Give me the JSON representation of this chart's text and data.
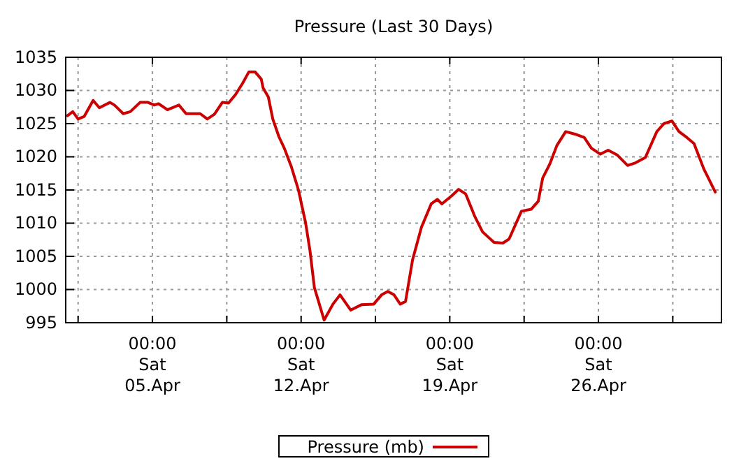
{
  "chart_data": {
    "type": "line",
    "title": "Pressure (Last 30 Days)",
    "x": [
      "--04-01T00:00",
      "--04-01T06:00",
      "--04-01T12:00",
      "--04-01T19:00",
      "--04-02T05:00",
      "--04-02T12:00",
      "--04-03T00:00",
      "--04-03T05:00",
      "--04-03T15:00",
      "--04-03T23:00",
      "--04-04T10:00",
      "--04-04T19:00",
      "--04-05T02:00",
      "--04-05T07:00",
      "--04-05T17:00",
      "--04-06T06:00",
      "--04-06T14:00",
      "--04-07T06:00",
      "--04-07T14:00",
      "--04-07T22:00",
      "--04-08T07:00",
      "--04-08T14:00",
      "--04-08T22:00",
      "--04-09T06:00",
      "--04-09T13:00",
      "--04-09T20:00",
      "--04-10T03:00",
      "--04-10T05:00",
      "--04-10T11:00",
      "--04-10T16:00",
      "--04-10T23:00",
      "--04-11T05:00",
      "--04-11T13:00",
      "--04-11T21:00",
      "--04-12T05:00",
      "--04-12T10:00",
      "--04-12T15:00",
      "--04-13T02:00",
      "--04-13T12:00",
      "--04-13T20:00",
      "--04-14T08:00",
      "--04-14T20:00",
      "--04-15T10:00",
      "--04-15T19:00",
      "--04-16T02:00",
      "--04-16T09:00",
      "--04-16T16:00",
      "--04-16T22:00",
      "--04-17T06:00",
      "--04-17T16:00",
      "--04-18T03:00",
      "--04-18T10:00",
      "--04-18T15:00",
      "--04-19T02:00",
      "--04-19T10:00",
      "--04-19T18:00",
      "--04-20T04:00",
      "--04-20T13:00",
      "--04-21T02:00",
      "--04-21T12:00",
      "--04-21T19:00",
      "--04-22T09:00",
      "--04-22T20:00",
      "--04-23T04:00",
      "--04-23T09:00",
      "--04-23T17:00",
      "--04-24T01:00",
      "--04-24T11:00",
      "--04-24T22:00",
      "--04-25T08:00",
      "--04-25T16:00",
      "--04-26T02:00",
      "--04-26T11:00",
      "--04-26T21:00",
      "--04-27T09:00",
      "--04-27T18:00",
      "--04-28T05:00",
      "--04-28T18:00",
      "--04-29T02:00",
      "--04-29T11:00",
      "--04-29T19:00",
      "--04-30T04:00",
      "--04-30T12:00",
      "--04-30T23:00",
      "--05-01T12:00"
    ],
    "series": [
      {
        "name": "Pressure (mb)",
        "color": "#cc0000",
        "values": [
          1026.2,
          1026.8,
          1025.7,
          1026.1,
          1028.5,
          1027.4,
          1028.2,
          1027.8,
          1026.5,
          1026.8,
          1028.2,
          1028.2,
          1027.8,
          1028,
          1027.1,
          1027.8,
          1026.5,
          1026.5,
          1025.7,
          1026.4,
          1028.2,
          1028.1,
          1029.4,
          1031.1,
          1032.8,
          1032.8,
          1031.7,
          1030.4,
          1029,
          1025.7,
          1023,
          1021.3,
          1018.5,
          1015,
          1010.1,
          1005.9,
          1000.3,
          995.4,
          997.8,
          999.2,
          996.9,
          997.7,
          997.8,
          999.2,
          999.7,
          999.2,
          997.8,
          998.2,
          1004.5,
          1009.4,
          1012.9,
          1013.6,
          1012.9,
          1014.1,
          1015.1,
          1014.4,
          1011.1,
          1008.7,
          1007.1,
          1007,
          1007.6,
          1011.8,
          1012.1,
          1013.3,
          1016.8,
          1018.9,
          1021.7,
          1023.8,
          1023.4,
          1022.9,
          1021.3,
          1020.4,
          1021,
          1020.3,
          1018.7,
          1019.1,
          1019.9,
          1023.8,
          1025,
          1025.4,
          1023.8,
          1022.9,
          1022,
          1018.2,
          1014.7
        ]
      }
    ],
    "xlim": [
      "--03-31T22:00",
      "--05-01T19:00"
    ],
    "xticks": [
      {
        "value": "--04-01T12:00",
        "label": null
      },
      {
        "value": "--04-05T00:00",
        "label": "00:00\nSat\n05.Apr"
      },
      {
        "value": "--04-08T12:00",
        "label": null
      },
      {
        "value": "--04-12T00:00",
        "label": "00:00\nSat\n12.Apr"
      },
      {
        "value": "--04-15T12:00",
        "label": null
      },
      {
        "value": "--04-19T00:00",
        "label": "00:00\nSat\n19.Apr"
      },
      {
        "value": "--04-22T12:00",
        "label": null
      },
      {
        "value": "--04-26T00:00",
        "label": "00:00\nSat\n26.Apr"
      },
      {
        "value": "--04-29T12:00",
        "label": null
      }
    ],
    "ylim": [
      995,
      1035
    ],
    "yticks": [
      995,
      1000,
      1005,
      1010,
      1015,
      1020,
      1025,
      1030,
      1035
    ],
    "grid": true,
    "legend": "bottom",
    "marker": "none",
    "line_style": "solid"
  }
}
